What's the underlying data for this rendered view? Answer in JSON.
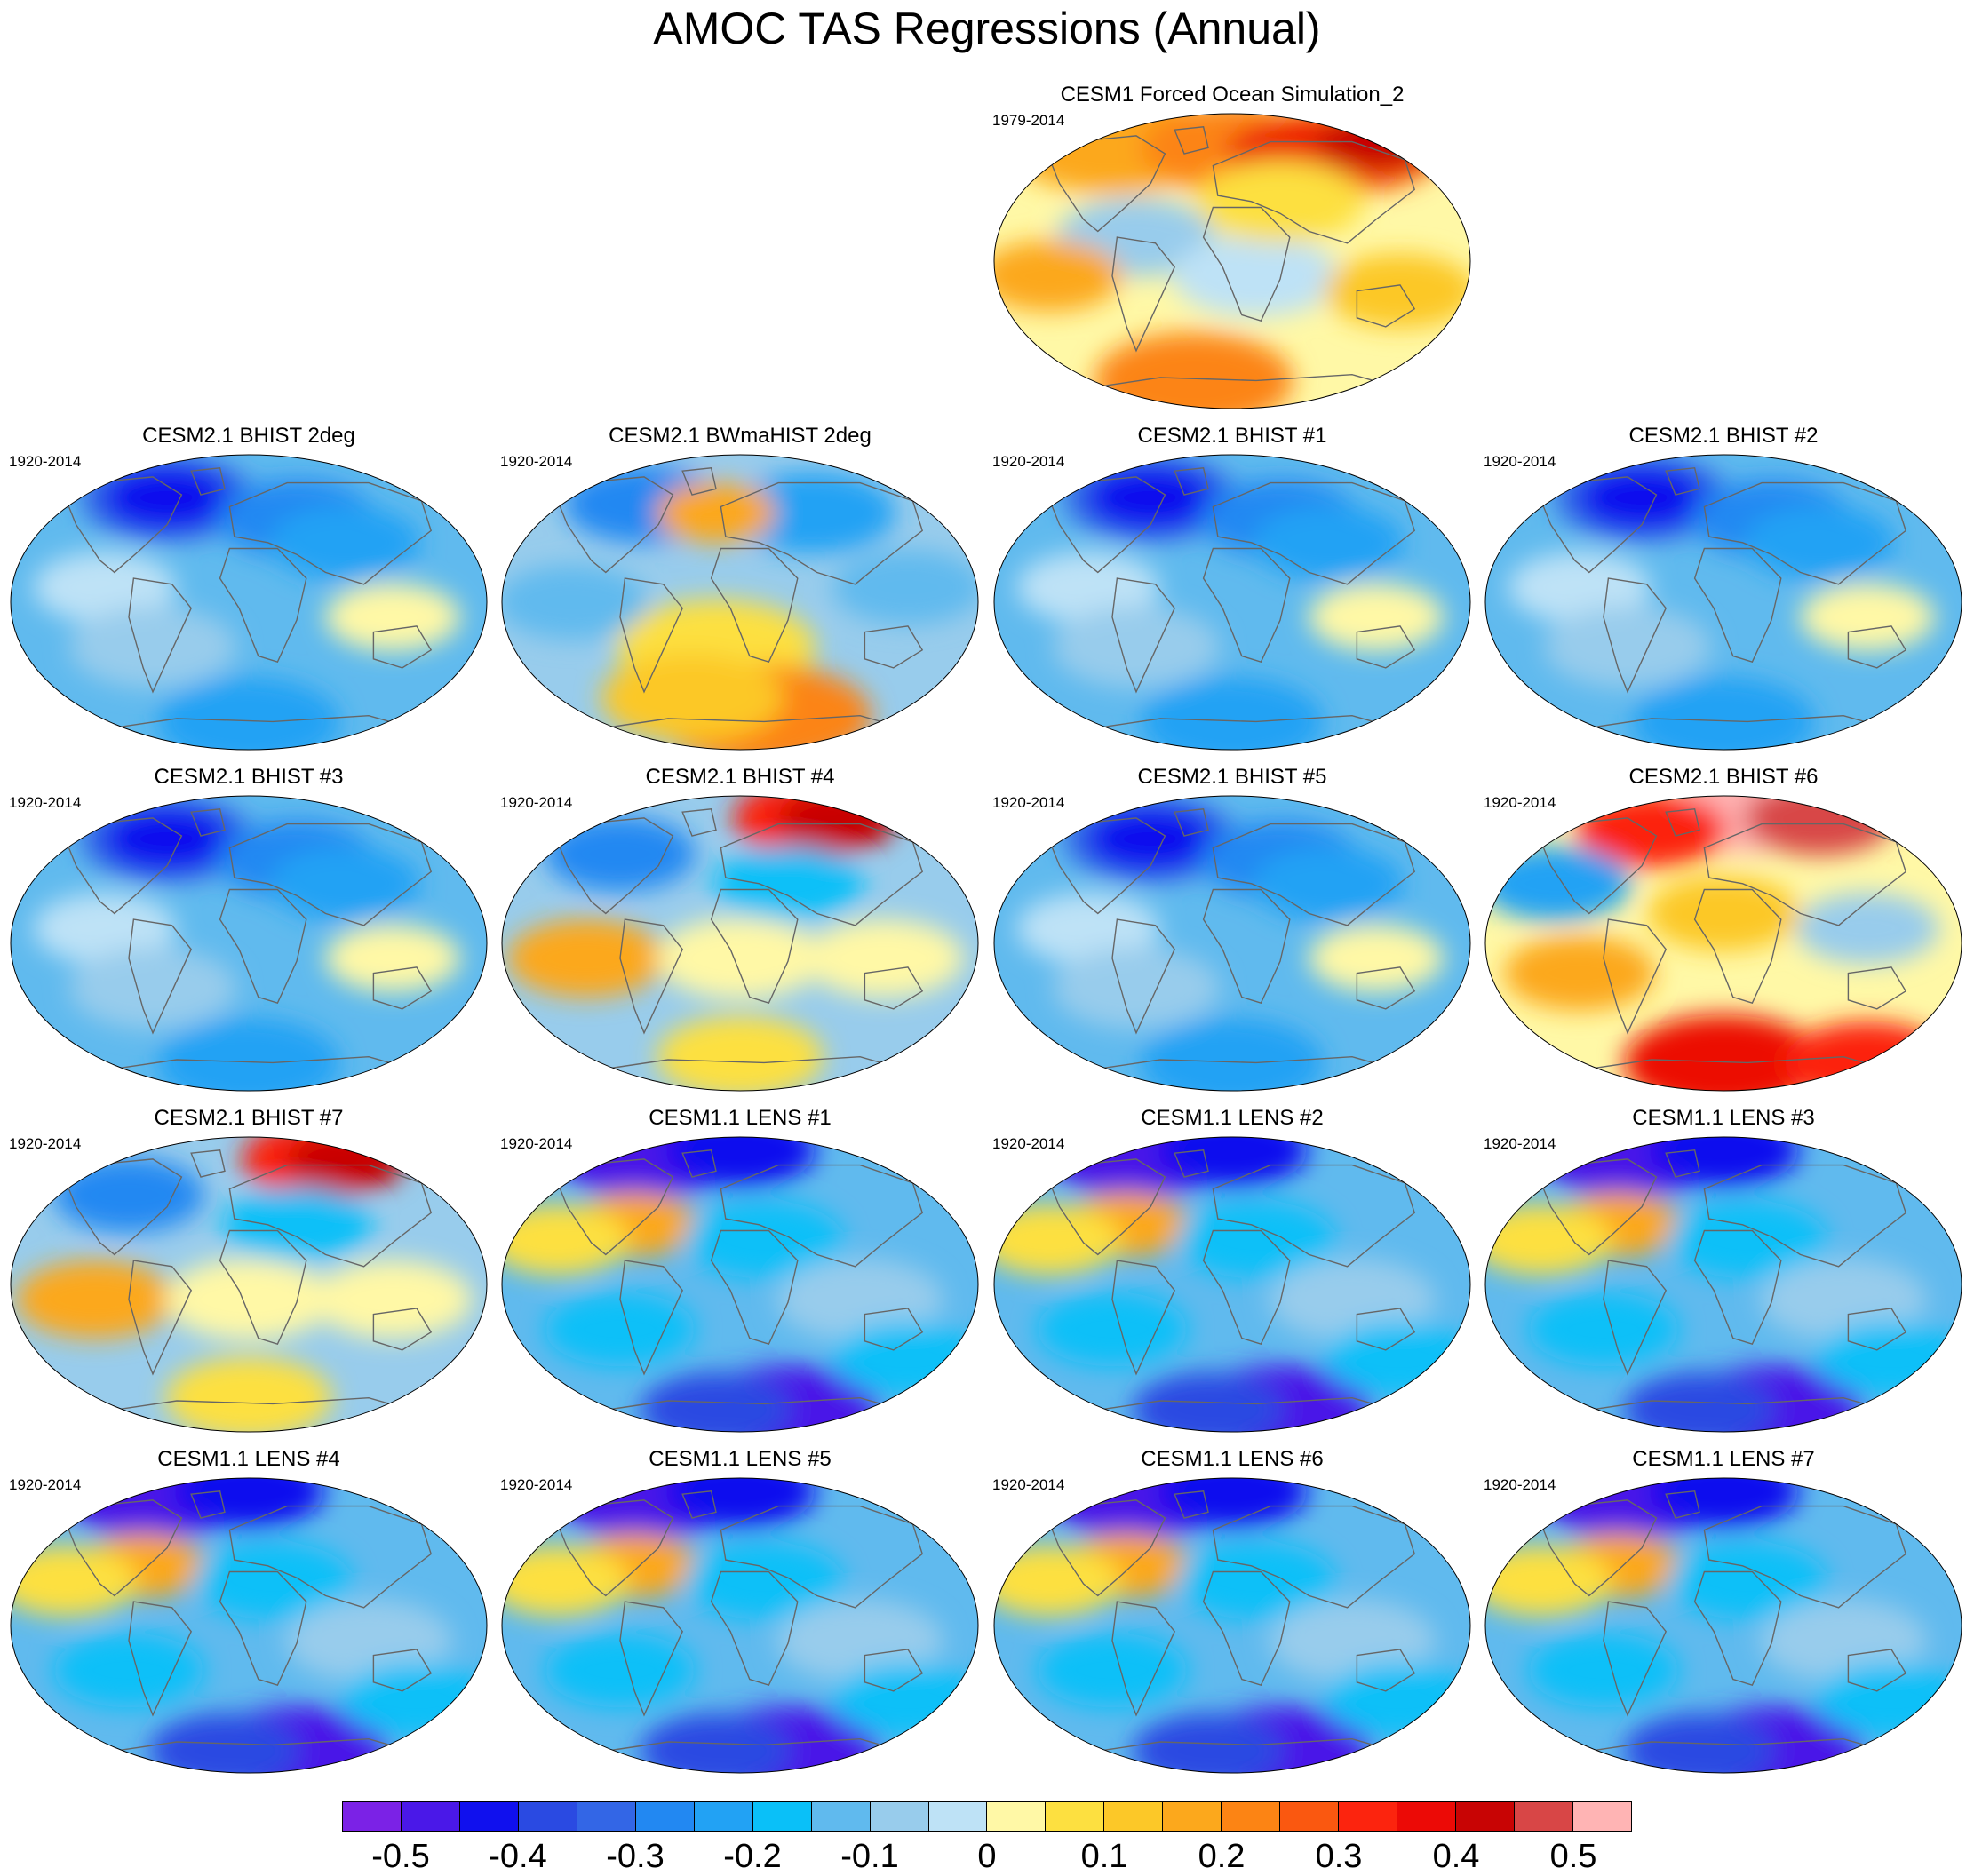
{
  "title": "AMOC TAS Regressions (Annual)",
  "panels": [
    {
      "title": "CESM1 Forced Ocean Simulation_2",
      "years": "1979-2014",
      "pattern": "warm"
    },
    {
      "title": "CESM2.1 BHIST 2deg",
      "years": "1920-2014",
      "pattern": "cool"
    },
    {
      "title": "CESM2.1 BWmaHIST 2deg",
      "years": "1920-2014",
      "pattern": "mixed-south-warm"
    },
    {
      "title": "CESM2.1 BHIST #1",
      "years": "1920-2014",
      "pattern": "cool"
    },
    {
      "title": "CESM2.1 BHIST #2",
      "years": "1920-2014",
      "pattern": "cool"
    },
    {
      "title": "CESM2.1 BHIST #3",
      "years": "1920-2014",
      "pattern": "cool"
    },
    {
      "title": "CESM2.1 BHIST #4",
      "years": "1920-2014",
      "pattern": "mixed-north-warm"
    },
    {
      "title": "CESM2.1 BHIST #5",
      "years": "1920-2014",
      "pattern": "cool"
    },
    {
      "title": "CESM2.1 BHIST #6",
      "years": "1920-2014",
      "pattern": "warm-north-hot"
    },
    {
      "title": "CESM2.1 BHIST #7",
      "years": "1920-2014",
      "pattern": "mixed-north-warm"
    },
    {
      "title": "CESM1.1 LENS #1",
      "years": "1920-2014",
      "pattern": "cool-strong"
    },
    {
      "title": "CESM1.1 LENS #2",
      "years": "1920-2014",
      "pattern": "cool-strong"
    },
    {
      "title": "CESM1.1 LENS #3",
      "years": "1920-2014",
      "pattern": "cool-strong"
    },
    {
      "title": "CESM1.1 LENS #4",
      "years": "1920-2014",
      "pattern": "cool-strong"
    },
    {
      "title": "CESM1.1 LENS #5",
      "years": "1920-2014",
      "pattern": "cool-strong"
    },
    {
      "title": "CESM1.1 LENS #6",
      "years": "1920-2014",
      "pattern": "cool-strong"
    },
    {
      "title": "CESM1.1 LENS #7",
      "years": "1920-2014",
      "pattern": "cool-strong"
    }
  ],
  "colorbar": {
    "colors": [
      "#7b22e6",
      "#4a18e8",
      "#1010ee",
      "#2a4ae2",
      "#3366e6",
      "#2288f2",
      "#22a2f4",
      "#0ac0f8",
      "#60baee",
      "#98ccec",
      "#bee2f6",
      "#fff8a6",
      "#fde040",
      "#fcc828",
      "#fca81c",
      "#fc8414",
      "#fa5810",
      "#fc240e",
      "#ec0a06",
      "#c80404",
      "#d84646",
      "#ffb4b4"
    ],
    "labels": [
      "-0.5",
      "-0.4",
      "-0.3",
      "-0.2",
      "-0.1",
      "0",
      "0.1",
      "0.2",
      "0.3",
      "0.4",
      "0.5"
    ]
  }
}
